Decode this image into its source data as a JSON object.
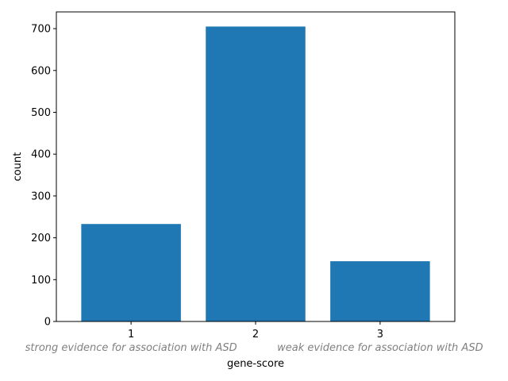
{
  "chart_data": {
    "type": "bar",
    "categories": [
      "1",
      "2",
      "3"
    ],
    "values": [
      233,
      705,
      144
    ],
    "xlabel": "gene-score",
    "ylabel": "count",
    "ylim": [
      0,
      740
    ],
    "yticks": [
      0,
      100,
      200,
      300,
      400,
      500,
      600,
      700
    ],
    "grid": false,
    "bar_color": "#1f77b4",
    "annotations": [
      {
        "text": "strong evidence for association with ASD",
        "category": "1",
        "color": "#808080"
      },
      {
        "text": "weak evidence for association with ASD",
        "category": "3",
        "color": "#808080"
      }
    ]
  }
}
